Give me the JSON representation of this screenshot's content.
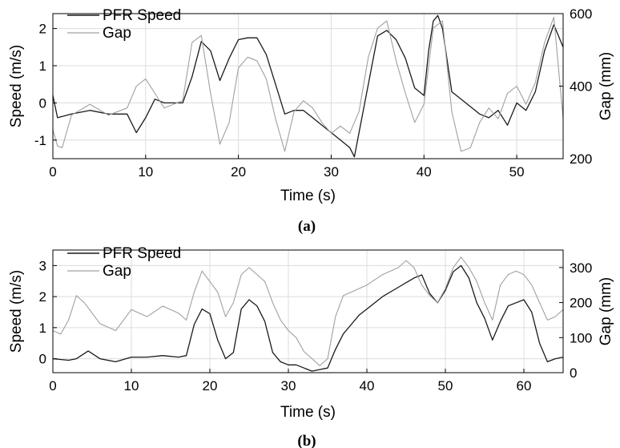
{
  "chart_data": [
    {
      "type": "line",
      "panel": "(a)",
      "xlabel": "Time (s)",
      "ylabel": "Speed (m/s)",
      "ylabel_right": "Gap (mm)",
      "xlim": [
        0,
        55
      ],
      "ylim": [
        -1.5,
        2.4
      ],
      "ylim_right": [
        200,
        600
      ],
      "x_ticks": [
        0,
        10,
        20,
        30,
        40,
        50
      ],
      "y_ticks": [
        -1,
        0,
        1,
        2
      ],
      "y_ticks_right": [
        200,
        400,
        600
      ],
      "grid": true,
      "legend_position": "top-left",
      "series": [
        {
          "name": "PFR Speed",
          "axis": "left",
          "color": "#1a1a1a",
          "x": [
            0,
            0.5,
            2,
            4,
            6,
            8,
            9,
            10,
            11,
            12,
            13,
            14,
            15,
            16,
            17,
            18,
            19,
            20,
            21,
            22,
            23,
            24,
            25,
            26,
            27,
            28,
            29,
            30,
            31,
            32,
            32.5,
            33,
            34,
            35,
            36,
            37,
            38,
            39,
            40,
            40.5,
            41,
            41.5,
            42,
            43,
            44,
            45,
            46,
            47,
            48,
            49,
            50,
            51,
            52,
            53,
            54,
            55
          ],
          "y": [
            0.2,
            -0.4,
            -0.3,
            -0.2,
            -0.3,
            -0.3,
            -0.8,
            -0.4,
            0.1,
            0.0,
            0.0,
            0.0,
            0.7,
            1.65,
            1.4,
            0.6,
            1.2,
            1.7,
            1.75,
            1.75,
            1.3,
            0.5,
            -0.3,
            -0.2,
            -0.2,
            -0.4,
            -0.6,
            -0.8,
            -1.0,
            -1.2,
            -1.45,
            -0.8,
            0.5,
            1.8,
            1.95,
            1.7,
            1.2,
            0.4,
            0.2,
            1.4,
            2.2,
            2.35,
            2.0,
            0.3,
            0.1,
            -0.1,
            -0.3,
            -0.4,
            -0.2,
            -0.6,
            0.0,
            -0.2,
            0.3,
            1.4,
            2.1,
            1.5
          ]
        },
        {
          "name": "Gap",
          "axis": "right",
          "color": "#a0a0a0",
          "x": [
            0,
            0.5,
            1,
            2,
            4,
            6,
            8,
            9,
            10,
            11,
            12,
            13,
            14,
            15,
            16,
            17,
            18,
            19,
            20,
            21,
            22,
            23,
            24,
            25,
            26,
            27,
            28,
            29,
            30,
            31,
            32,
            33,
            34,
            35,
            36,
            37,
            38,
            39,
            40,
            41,
            42,
            43,
            44,
            45,
            46,
            47,
            48,
            49,
            50,
            51,
            52,
            53,
            54,
            55
          ],
          "y": [
            280,
            235,
            230,
            320,
            350,
            320,
            340,
            400,
            420,
            380,
            340,
            350,
            360,
            520,
            540,
            380,
            240,
            300,
            450,
            480,
            470,
            420,
            310,
            220,
            330,
            360,
            340,
            300,
            270,
            290,
            270,
            330,
            480,
            560,
            580,
            470,
            380,
            300,
            350,
            560,
            580,
            330,
            220,
            230,
            300,
            340,
            310,
            380,
            400,
            350,
            410,
            520,
            590,
            310
          ]
        }
      ]
    },
    {
      "type": "line",
      "panel": "(b)",
      "xlabel": "Time (s)",
      "ylabel": "Speed (m/s)",
      "ylabel_right": "Gap (mm)",
      "xlim": [
        0,
        65
      ],
      "ylim": [
        -0.45,
        3.5
      ],
      "ylim_right": [
        0,
        350
      ],
      "x_ticks": [
        0,
        10,
        20,
        30,
        40,
        50,
        60
      ],
      "y_ticks": [
        0,
        1,
        2,
        3
      ],
      "y_ticks_right": [
        0,
        100,
        200,
        300
      ],
      "grid": true,
      "legend_position": "top-left",
      "series": [
        {
          "name": "PFR Speed",
          "axis": "left",
          "color": "#1a1a1a",
          "x": [
            0,
            2,
            3,
            4.5,
            6,
            8,
            10,
            12,
            14,
            16,
            17,
            18,
            19,
            20,
            21,
            22,
            23,
            24,
            25,
            26,
            27,
            28,
            29,
            30,
            31,
            32,
            33,
            34,
            35,
            36,
            37,
            38,
            39,
            40,
            42,
            44,
            46,
            47,
            48,
            49,
            50,
            51,
            52,
            53,
            54,
            55,
            56,
            57,
            58,
            59,
            60,
            61,
            62,
            63,
            64,
            65
          ],
          "y": [
            0,
            -0.05,
            0.0,
            0.25,
            0.0,
            -0.1,
            0.05,
            0.05,
            0.1,
            0.05,
            0.1,
            1.1,
            1.6,
            1.45,
            0.6,
            0.0,
            0.2,
            1.6,
            1.9,
            1.7,
            1.2,
            0.2,
            -0.1,
            -0.2,
            -0.2,
            -0.3,
            -0.4,
            -0.35,
            -0.3,
            0.3,
            0.8,
            1.1,
            1.4,
            1.6,
            2.0,
            2.3,
            2.6,
            2.7,
            2.1,
            1.8,
            2.2,
            2.8,
            3.0,
            2.6,
            1.8,
            1.3,
            0.6,
            1.2,
            1.7,
            1.8,
            1.9,
            1.5,
            0.5,
            -0.1,
            0.0,
            0.05
          ]
        },
        {
          "name": "Gap",
          "axis": "right",
          "color": "#a0a0a0",
          "x": [
            0,
            1,
            2,
            3,
            4,
            6,
            8,
            10,
            12,
            14,
            16,
            17,
            18,
            19,
            20,
            21,
            22,
            23,
            24,
            25,
            26,
            27,
            28,
            29,
            30,
            31,
            32,
            33,
            34,
            35,
            36,
            37,
            38,
            40,
            42,
            44,
            45,
            46,
            47,
            48,
            49,
            50,
            51,
            52,
            53,
            54,
            55,
            56,
            57,
            58,
            59,
            60,
            61,
            62,
            63,
            64,
            65
          ],
          "y": [
            120,
            110,
            150,
            220,
            200,
            140,
            120,
            180,
            160,
            190,
            170,
            150,
            230,
            290,
            260,
            230,
            160,
            200,
            280,
            300,
            280,
            260,
            200,
            150,
            120,
            100,
            60,
            40,
            20,
            40,
            160,
            220,
            230,
            250,
            280,
            300,
            320,
            300,
            250,
            220,
            200,
            240,
            300,
            330,
            300,
            260,
            200,
            150,
            250,
            280,
            290,
            280,
            250,
            200,
            150,
            160,
            180
          ]
        }
      ]
    }
  ]
}
